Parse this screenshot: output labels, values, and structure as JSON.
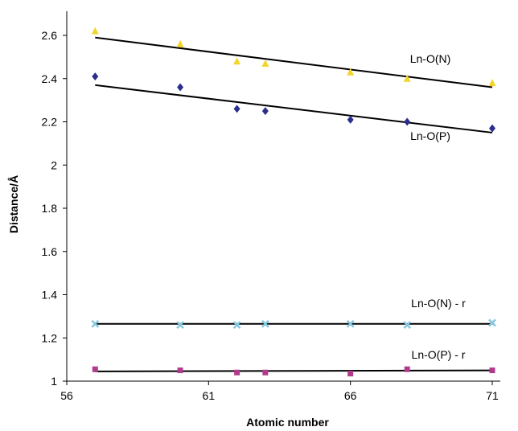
{
  "chart_data": {
    "type": "scatter",
    "title": "",
    "xlabel": "Atomic number",
    "ylabel": "Distance/Å",
    "xlim": [
      56,
      71
    ],
    "ylim": [
      1,
      2.6
    ],
    "xticks": [
      56,
      61,
      66,
      71
    ],
    "yticks": [
      1,
      1.2,
      1.4,
      1.6,
      1.8,
      2,
      2.2,
      2.4,
      2.6
    ],
    "ytick_labels": [
      "1",
      "1.2",
      "1.4",
      "1.6",
      "1.8",
      "2",
      "2.2",
      "2.4",
      "2.6"
    ],
    "xtick_labels": [
      "56",
      "61",
      "66",
      "71"
    ],
    "grid": false,
    "series": [
      {
        "name": "Ln-O(N)",
        "marker": "triangle",
        "color": "#F2D52A",
        "points": [
          [
            57,
            2.62
          ],
          [
            60,
            2.56
          ],
          [
            62,
            2.48
          ],
          [
            63,
            2.47
          ],
          [
            66,
            2.43
          ],
          [
            68,
            2.4
          ],
          [
            71,
            2.38
          ]
        ],
        "trend": [
          [
            57,
            2.59
          ],
          [
            71,
            2.36
          ]
        ]
      },
      {
        "name": "Ln-O(P)",
        "marker": "diamond",
        "color": "#2B2E8C",
        "points": [
          [
            57,
            2.41
          ],
          [
            60,
            2.36
          ],
          [
            62,
            2.26
          ],
          [
            63,
            2.25
          ],
          [
            66,
            2.21
          ],
          [
            68,
            2.2
          ],
          [
            71,
            2.17
          ]
        ],
        "trend": [
          [
            57,
            2.37
          ],
          [
            71,
            2.15
          ]
        ]
      },
      {
        "name": "Ln-O(N) - r",
        "marker": "x",
        "color": "#86C8E0",
        "points": [
          [
            57,
            1.265
          ],
          [
            60,
            1.26
          ],
          [
            62,
            1.26
          ],
          [
            63,
            1.265
          ],
          [
            66,
            1.265
          ],
          [
            68,
            1.26
          ],
          [
            71,
            1.27
          ]
        ],
        "trend": [
          [
            57,
            1.265
          ],
          [
            71,
            1.265
          ]
        ]
      },
      {
        "name": "Ln-O(P) - r",
        "marker": "square",
        "color": "#B03A8C",
        "points": [
          [
            57,
            1.055
          ],
          [
            60,
            1.05
          ],
          [
            62,
            1.04
          ],
          [
            63,
            1.04
          ],
          [
            66,
            1.035
          ],
          [
            68,
            1.055
          ],
          [
            71,
            1.05
          ]
        ],
        "trend": [
          [
            57,
            1.045
          ],
          [
            71,
            1.05
          ]
        ]
      }
    ]
  }
}
